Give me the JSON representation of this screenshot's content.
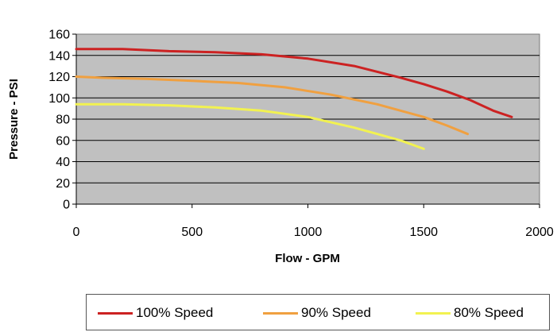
{
  "chart_data": {
    "type": "line",
    "xlabel": "Flow - GPM",
    "ylabel": "Pressure - PSI",
    "xlim": [
      0,
      2000
    ],
    "ylim": [
      0,
      160
    ],
    "xticks": [
      "0",
      "500",
      "1000",
      "1500",
      "2000"
    ],
    "yticks": [
      "0",
      "20",
      "40",
      "60",
      "80",
      "100",
      "120",
      "140",
      "160"
    ],
    "plot_background": "#c0c0c0",
    "grid": "horizontal",
    "legend_position": "bottom",
    "series": [
      {
        "name": "100% Speed",
        "color": "#cc2222",
        "x": [
          0,
          200,
          400,
          600,
          800,
          1000,
          1200,
          1400,
          1500,
          1600,
          1700,
          1800,
          1880
        ],
        "y": [
          146,
          146,
          144,
          143,
          141,
          137,
          130,
          119,
          113,
          106,
          98,
          88,
          82
        ]
      },
      {
        "name": "90% Speed",
        "color": "#f0a040",
        "x": [
          0,
          100,
          300,
          500,
          700,
          900,
          1100,
          1300,
          1400,
          1500,
          1600,
          1690
        ],
        "y": [
          120,
          119,
          118,
          116,
          114,
          110,
          103,
          94,
          88,
          82,
          74,
          66
        ]
      },
      {
        "name": "80% Speed",
        "color": "#f2f250",
        "x": [
          0,
          200,
          400,
          600,
          800,
          1000,
          1200,
          1300,
          1400,
          1500
        ],
        "y": [
          94,
          94,
          93,
          91,
          88,
          82,
          72,
          66,
          60,
          52
        ]
      }
    ]
  }
}
